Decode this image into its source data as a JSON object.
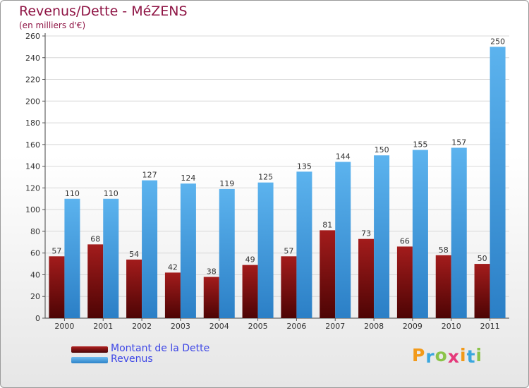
{
  "header": {
    "title": "Revenus/Dette - MéZENS",
    "subtitle": "(en milliers d'€)"
  },
  "chart_data": {
    "type": "bar",
    "categories": [
      "2000",
      "2001",
      "2002",
      "2003",
      "2004",
      "2005",
      "2006",
      "2007",
      "2008",
      "2009",
      "2010",
      "2011"
    ],
    "series": [
      {
        "name": "Montant de la Dette",
        "values": [
          57,
          68,
          54,
          42,
          38,
          49,
          57,
          81,
          73,
          66,
          58,
          50
        ],
        "color": "#7a0a0a"
      },
      {
        "name": "Revenus",
        "values": [
          110,
          110,
          127,
          124,
          119,
          125,
          135,
          144,
          150,
          155,
          157,
          250
        ],
        "color": "#4ea6e6"
      }
    ],
    "y_ticks": [
      "0",
      "20",
      "40",
      "60",
      "80",
      "100",
      "120",
      "140",
      "160",
      "180",
      "200",
      "220",
      "240",
      "260"
    ],
    "ylim": [
      0,
      260
    ],
    "grid": true,
    "legend_position": "bottom-left"
  },
  "legend": {
    "items": [
      {
        "label": "Montant de la Dette",
        "color": "#7a0a0a"
      },
      {
        "label": "Revenus",
        "color": "#4ea6e6"
      }
    ]
  },
  "logo": {
    "letters": [
      "P",
      "r",
      "o",
      "x",
      "i",
      "t",
      "i"
    ],
    "colors": [
      "#f29a1a",
      "#3aa7df",
      "#8bc34a",
      "#e5397a",
      "#f29a1a",
      "#3aa7df",
      "#8bc34a"
    ]
  }
}
